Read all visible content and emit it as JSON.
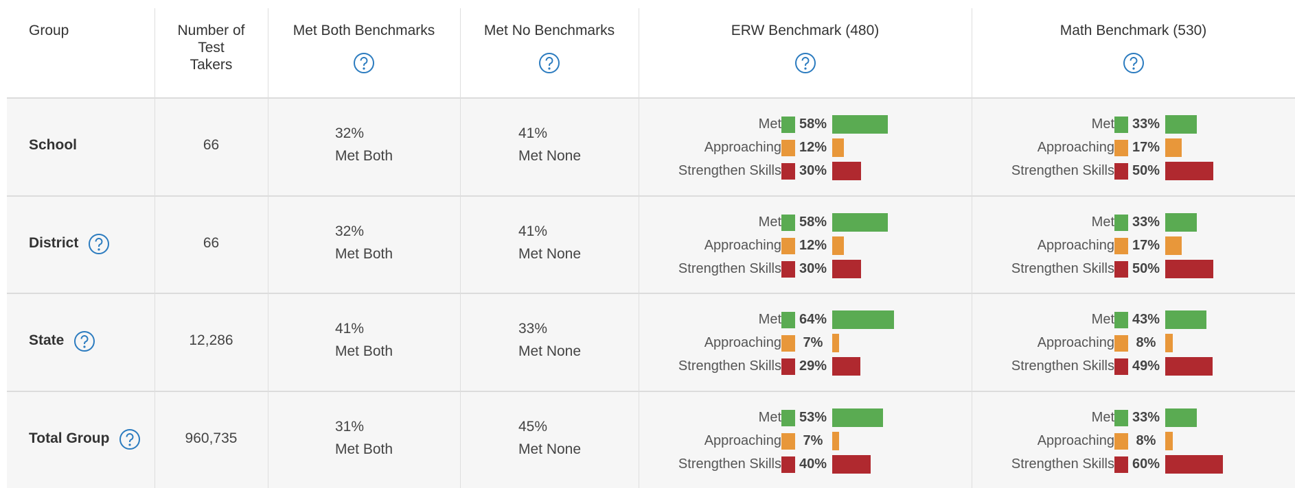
{
  "columns": [
    "Group",
    "Number of Test Takers",
    "Met Both Benchmarks",
    "Met No Benchmarks",
    "ERW Benchmark (480)",
    "Math Benchmark (530)"
  ],
  "header_help": [
    false,
    false,
    true,
    true,
    true,
    true
  ],
  "levels": [
    {
      "name": "Met",
      "color": "#5aab52"
    },
    {
      "name": "Approaching",
      "color": "#e8973a"
    },
    {
      "name": "Strengthen Skills",
      "color": "#b0292f"
    }
  ],
  "captions": {
    "met_both": "Met Both",
    "met_none": "Met None"
  },
  "rows": [
    {
      "group": "School",
      "help": false,
      "test_takers": "66",
      "met_both": "32%",
      "met_none": "41%",
      "erw": {
        "values": [
          58,
          12,
          30
        ],
        "value_labels": [
          "58%",
          "12%",
          "30%"
        ]
      },
      "math": {
        "values": [
          33,
          17,
          50
        ],
        "value_labels": [
          "33%",
          "17%",
          "50%"
        ]
      }
    },
    {
      "group": "District",
      "help": true,
      "test_takers": "66",
      "met_both": "32%",
      "met_none": "41%",
      "erw": {
        "values": [
          58,
          12,
          30
        ],
        "value_labels": [
          "58%",
          "12%",
          "30%"
        ]
      },
      "math": {
        "values": [
          33,
          17,
          50
        ],
        "value_labels": [
          "33%",
          "17%",
          "50%"
        ]
      }
    },
    {
      "group": "State",
      "help": true,
      "test_takers": "12,286",
      "met_both": "41%",
      "met_none": "33%",
      "erw": {
        "values": [
          64,
          7,
          29
        ],
        "value_labels": [
          "64%",
          "7%",
          "29%"
        ]
      },
      "math": {
        "values": [
          43,
          8,
          49
        ],
        "value_labels": [
          "43%",
          "8%",
          "49%"
        ]
      }
    },
    {
      "group": "Total Group",
      "help": true,
      "test_takers": "960,735",
      "met_both": "31%",
      "met_none": "45%",
      "erw": {
        "values": [
          53,
          7,
          40
        ],
        "value_labels": [
          "53%",
          "7%",
          "40%"
        ]
      },
      "math": {
        "values": [
          33,
          8,
          60
        ],
        "value_labels": [
          "33%",
          "8%",
          "60%"
        ]
      }
    }
  ]
}
